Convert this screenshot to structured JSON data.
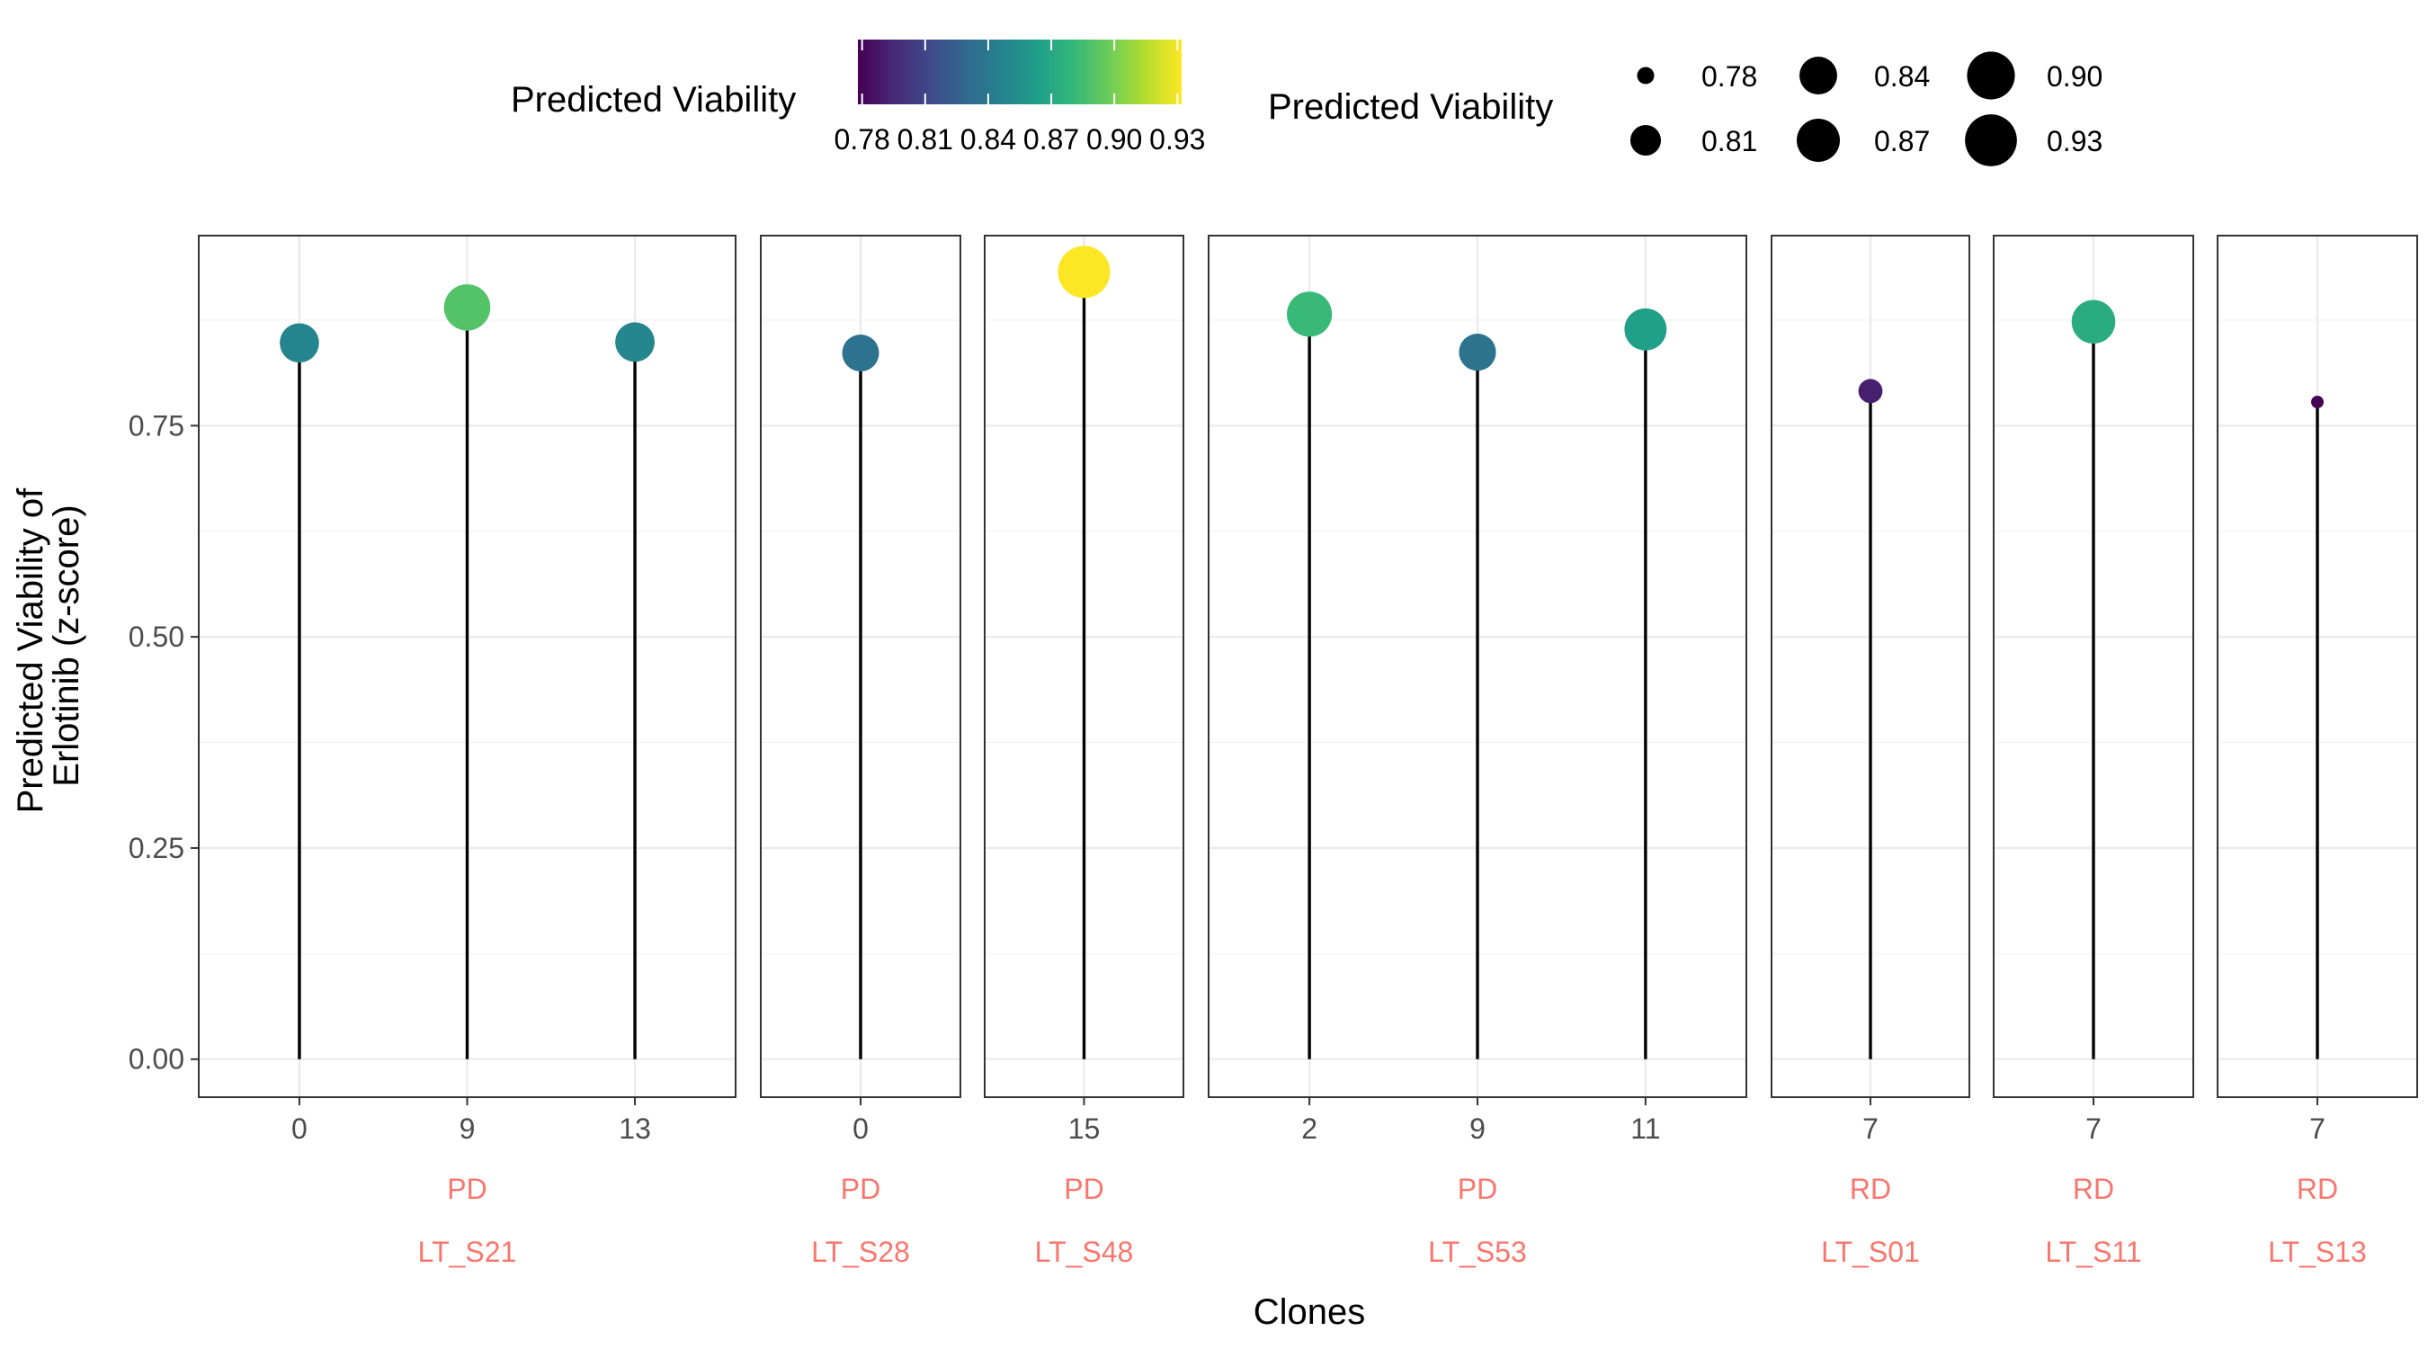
{
  "chart_data": {
    "type": "lollipop",
    "xlabel": "Clones",
    "ylabel_lines": [
      "Predicted Viability of",
      "Erlotinib (z-score)"
    ],
    "ylim": [
      -0.045,
      0.975
    ],
    "y_ticks": [
      0.0,
      0.25,
      0.5,
      0.75
    ],
    "y_tick_labels": [
      "0.00",
      "0.25",
      "0.50",
      "0.75"
    ],
    "grid": true,
    "strip_color": "#F8766D",
    "panels": [
      {
        "sample": "LT_S21",
        "response": "PD",
        "clones": [
          "0",
          "9",
          "13"
        ],
        "values": [
          0.848,
          0.89,
          0.849
        ]
      },
      {
        "sample": "LT_S28",
        "response": "PD",
        "clones": [
          "0"
        ],
        "values": [
          0.836
        ]
      },
      {
        "sample": "LT_S48",
        "response": "PD",
        "clones": [
          "15"
        ],
        "values": [
          0.932
        ]
      },
      {
        "sample": "LT_S53",
        "response": "PD",
        "clones": [
          "2",
          "9",
          "11"
        ],
        "values": [
          0.882,
          0.837,
          0.864
        ]
      },
      {
        "sample": "LT_S01",
        "response": "RD",
        "clones": [
          "7"
        ],
        "values": [
          0.791
        ]
      },
      {
        "sample": "LT_S11",
        "response": "RD",
        "clones": [
          "7"
        ],
        "values": [
          0.873
        ]
      },
      {
        "sample": "LT_S13",
        "response": "RD",
        "clones": [
          "7"
        ],
        "values": [
          0.778
        ]
      }
    ],
    "color_legend": {
      "title": "Predicted Viability",
      "range": [
        0.778,
        0.932
      ],
      "tick_values": [
        0.78,
        0.81,
        0.84,
        0.87,
        0.9,
        0.93
      ],
      "tick_labels": [
        "0.78",
        "0.81",
        "0.84",
        "0.87",
        "0.90",
        "0.93"
      ]
    },
    "size_legend": {
      "title": "Predicted Viability",
      "entries": [
        {
          "label": "0.78",
          "value": 0.78
        },
        {
          "label": "0.81",
          "value": 0.81
        },
        {
          "label": "0.84",
          "value": 0.84
        },
        {
          "label": "0.87",
          "value": 0.87
        },
        {
          "label": "0.90",
          "value": 0.9
        },
        {
          "label": "0.93",
          "value": 0.93
        }
      ]
    },
    "palette": [
      "#440154",
      "#482878",
      "#3E4A89",
      "#31688E",
      "#26828E",
      "#1F9E89",
      "#35B779",
      "#6DCD59",
      "#B4DE2C",
      "#FDE725"
    ]
  }
}
